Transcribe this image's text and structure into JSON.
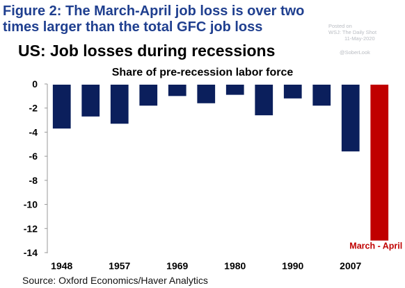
{
  "header": {
    "headline_line1": "Figure 2: The March-April job loss is over two",
    "headline_line2": "times larger than the total GFC job loss",
    "watermark": {
      "line1": "Posted on",
      "line2": "WSJ: The Daily Shot",
      "line3": "11-May-2020",
      "handle": "@SoberLook"
    }
  },
  "footer": {
    "source": "Source: Oxford Economics/Haver Analytics"
  },
  "chart_data": {
    "type": "bar",
    "title": "US: Job losses during recessions",
    "subtitle": "Share of pre-recession labor force",
    "xlabel": "",
    "ylabel": "",
    "ylim": [
      -14,
      0
    ],
    "yticks": [
      0,
      -2,
      -4,
      -6,
      -8,
      -10,
      -12,
      -14
    ],
    "grid": false,
    "x_tick_labels": [
      "1948",
      "1957",
      "1969",
      "1980",
      "1990",
      "2007"
    ],
    "bars": [
      {
        "values": -3.7,
        "color": "#0b1f5c"
      },
      {
        "values": -2.7,
        "color": "#0b1f5c"
      },
      {
        "values": -3.3,
        "color": "#0b1f5c"
      },
      {
        "values": -1.8,
        "color": "#0b1f5c"
      },
      {
        "values": -1.0,
        "color": "#0b1f5c"
      },
      {
        "values": -1.6,
        "color": "#0b1f5c"
      },
      {
        "values": -0.9,
        "color": "#0b1f5c"
      },
      {
        "values": -2.6,
        "color": "#0b1f5c"
      },
      {
        "values": -1.2,
        "color": "#0b1f5c"
      },
      {
        "values": -1.8,
        "color": "#0b1f5c"
      },
      {
        "values": -5.6,
        "color": "#0b1f5c"
      },
      {
        "values": -13.0,
        "color": "#c00000",
        "label": "March - April"
      }
    ],
    "colors": {
      "bar": "#0b1f5c",
      "highlight": "#c00000",
      "headline": "#1f3f8f"
    }
  }
}
